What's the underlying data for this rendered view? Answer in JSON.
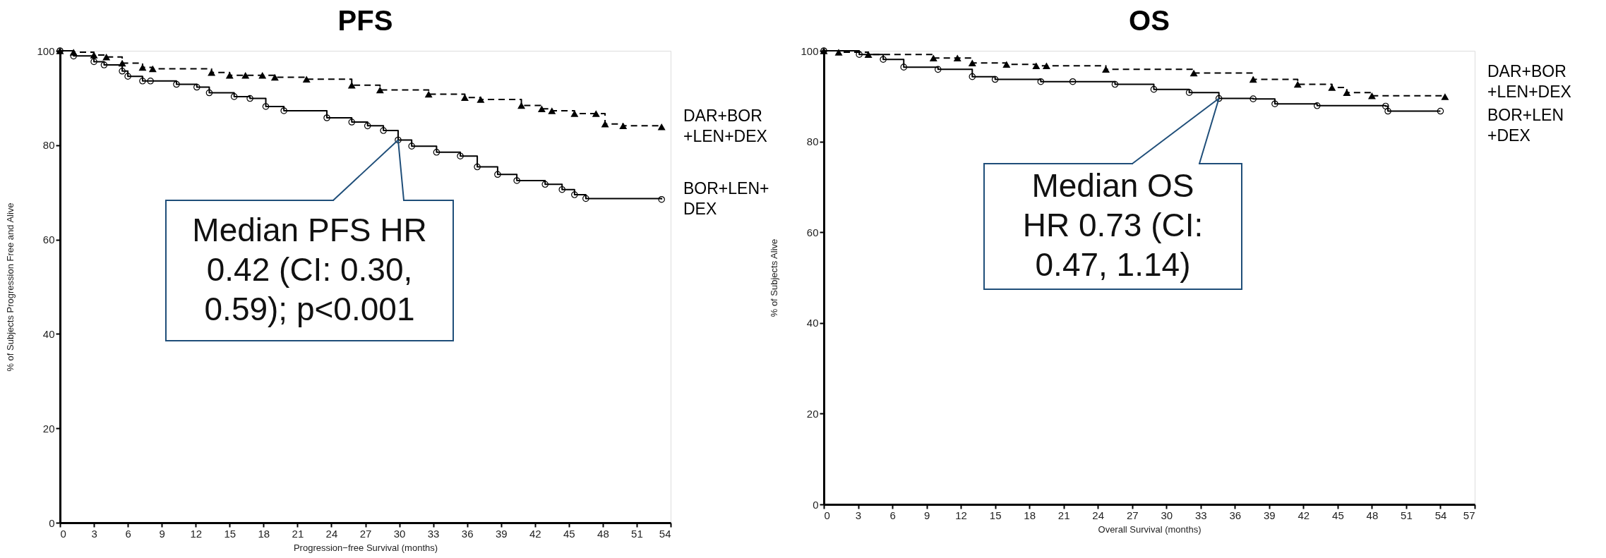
{
  "chart_data": [
    {
      "type": "step",
      "title": "PFS",
      "xlabel": "Progression−free Survival (months)",
      "ylabel": "% of Subjects Progression Free and Alive",
      "xlim": [
        0,
        54
      ],
      "xticks": [
        0,
        3,
        6,
        9,
        12,
        15,
        18,
        21,
        24,
        27,
        30,
        33,
        36,
        39,
        42,
        45,
        48,
        51,
        54
      ],
      "ylim": [
        0,
        100
      ],
      "yticks": [
        0,
        20,
        40,
        60,
        80,
        100
      ],
      "grid": false,
      "series": [
        {
          "name": "DAR+BOR\n+LEN+DEX",
          "color": "#000000",
          "line_style": "dashed",
          "marker": "triangle",
          "x": [
            0,
            1.2,
            3.0,
            4.1,
            5.5,
            7.3,
            8.2,
            13.4,
            15.0,
            16.4,
            17.9,
            19.0,
            21.8,
            25.8,
            28.3,
            32.6,
            35.8,
            37.2,
            40.8,
            42.6,
            43.5,
            45.5,
            47.4,
            48.2,
            49.8,
            53.2
          ],
          "values": [
            100,
            99.7,
            99.1,
            98.7,
            97.4,
            96.5,
            96.2,
            95.4,
            94.8,
            94.8,
            94.8,
            94.4,
            94.0,
            92.7,
            91.7,
            90.8,
            90.1,
            89.7,
            88.4,
            87.7,
            87.3,
            86.7,
            86.7,
            84.5,
            84.1,
            83.9
          ]
        },
        {
          "name": "BOR+LEN+\nDEX",
          "color": "#000000",
          "line_style": "solid",
          "marker": "circle",
          "x": [
            0,
            1.2,
            3.0,
            3.9,
            5.5,
            6.0,
            7.3,
            8.0,
            10.3,
            12.1,
            13.2,
            15.4,
            16.8,
            18.2,
            19.8,
            23.6,
            25.8,
            27.2,
            28.6,
            29.9,
            31.1,
            33.3,
            35.4,
            36.9,
            38.7,
            40.4,
            42.9,
            44.4,
            45.5,
            46.5,
            53.2
          ],
          "values": [
            100,
            98.9,
            97.7,
            97.0,
            95.7,
            94.6,
            93.6,
            93.6,
            92.9,
            92.3,
            91.1,
            90.3,
            89.9,
            88.2,
            87.3,
            85.8,
            84.9,
            84.1,
            83.1,
            81.1,
            79.8,
            78.5,
            77.7,
            75.4,
            73.8,
            72.5,
            71.7,
            70.6,
            69.5,
            68.7,
            68.5
          ]
        }
      ],
      "annotations": [
        {
          "text": "Median PFS HR\n0.42 (CI: 0.30,\n0.59); p<0.001",
          "x": 29.9,
          "y": 81.1
        }
      ]
    },
    {
      "type": "step",
      "title": "OS",
      "xlabel": "Overall Survival (months)",
      "ylabel": "% of Subjects Alive",
      "xlim": [
        0,
        57
      ],
      "xticks": [
        0,
        3,
        6,
        9,
        12,
        15,
        18,
        21,
        24,
        27,
        30,
        33,
        36,
        39,
        42,
        45,
        48,
        51,
        54,
        57
      ],
      "ylim": [
        0,
        100
      ],
      "yticks": [
        0,
        20,
        40,
        60,
        80,
        100
      ],
      "grid": false,
      "series": [
        {
          "name": "DAR+BOR\n+LEN+DEX",
          "color": "#000000",
          "line_style": "dashed",
          "marker": "triangle",
          "x": [
            0,
            1.3,
            3.9,
            9.6,
            11.7,
            13.0,
            16.0,
            18.6,
            19.5,
            24.7,
            32.4,
            37.6,
            41.5,
            44.5,
            45.8,
            48.0,
            54.4
          ],
          "values": [
            100,
            99.7,
            99.2,
            98.4,
            98.4,
            97.3,
            97.0,
            96.7,
            96.7,
            95.9,
            95.1,
            93.7,
            92.6,
            91.9,
            90.8,
            90.1,
            89.9
          ]
        },
        {
          "name": "BOR+LEN\n+DEX",
          "color": "#000000",
          "line_style": "solid",
          "marker": "circle",
          "x": [
            0,
            3.1,
            5.2,
            7.0,
            10.0,
            13.0,
            15.0,
            19.0,
            21.8,
            25.5,
            28.9,
            32.0,
            34.6,
            37.6,
            39.5,
            43.2,
            49.2,
            49.4,
            54.0
          ],
          "values": [
            100,
            99.2,
            98.1,
            96.4,
            95.9,
            94.3,
            93.7,
            93.2,
            93.2,
            92.6,
            91.5,
            90.8,
            89.5,
            89.4,
            88.3,
            87.9,
            87.8,
            86.7,
            86.7
          ]
        }
      ],
      "annotations": [
        {
          "text": "Median OS\nHR 0.73 (CI:\n0.47, 1.14)",
          "x": 34.6,
          "y": 89.5
        }
      ]
    }
  ]
}
